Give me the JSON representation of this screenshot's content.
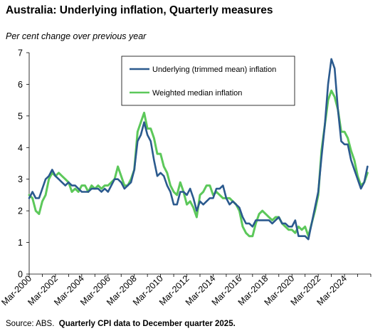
{
  "chart_data": {
    "type": "line",
    "title": "Australia: Underlying inflation, Quarterly measures",
    "subtitle": "Per cent change over previous year",
    "source_prefix": "Source: ABS.",
    "source_note": "Quarterly CPI data to December quarter 2025.",
    "xlabel": "",
    "ylabel": "",
    "ylim": [
      0,
      7
    ],
    "yticks": [
      0,
      1,
      2,
      3,
      4,
      5,
      6,
      7
    ],
    "x_start": "Mar-2000",
    "x_tick_labels": [
      "Mar-2000",
      "Mar-2002",
      "Mar-2004",
      "Mar-2006",
      "Mar-2008",
      "Mar-2010",
      "Mar-2012",
      "Mar-2014",
      "Mar-2016",
      "Mar-2018",
      "Mar-2020",
      "Mar-2022",
      "Mar-2024"
    ],
    "grid": false,
    "legend_position": "top-center",
    "series": [
      {
        "name": "Underlying (trimmed mean) inflation",
        "color": "#2b5a8e",
        "values": [
          2.4,
          2.6,
          2.4,
          2.4,
          2.7,
          3.0,
          3.1,
          3.3,
          3.1,
          3.0,
          2.9,
          2.8,
          2.9,
          2.8,
          2.8,
          2.7,
          2.6,
          2.6,
          2.6,
          2.7,
          2.7,
          2.7,
          2.6,
          2.7,
          2.6,
          2.8,
          3.0,
          3.0,
          2.9,
          2.7,
          2.8,
          2.9,
          3.3,
          4.2,
          4.4,
          4.8,
          4.4,
          4.2,
          3.6,
          3.1,
          3.2,
          3.1,
          2.8,
          2.6,
          2.2,
          2.2,
          2.6,
          2.6,
          2.5,
          2.7,
          2.4,
          2.0,
          2.3,
          2.2,
          2.3,
          2.4,
          2.4,
          2.7,
          2.7,
          2.8,
          2.4,
          2.2,
          2.3,
          2.2,
          2.1,
          1.8,
          1.6,
          1.6,
          1.5,
          1.7,
          1.7,
          1.7,
          1.7,
          1.7,
          1.6,
          1.7,
          1.8,
          1.6,
          1.6,
          1.5,
          1.5,
          1.7,
          1.2,
          1.2,
          1.2,
          1.1,
          1.6,
          2.1,
          2.6,
          3.7,
          4.7,
          6.0,
          6.8,
          6.5,
          5.2,
          4.2,
          4.1,
          4.1,
          3.6,
          3.3,
          3.0,
          2.7,
          2.9,
          3.4
        ]
      },
      {
        "name": "Weighted median inflation",
        "color": "#5cc85a",
        "values": [
          2.5,
          2.4,
          2.0,
          1.9,
          2.3,
          2.5,
          3.0,
          3.2,
          3.1,
          3.2,
          3.1,
          3.0,
          2.9,
          2.6,
          2.7,
          2.6,
          2.8,
          2.8,
          2.6,
          2.8,
          2.7,
          2.8,
          2.7,
          2.8,
          2.8,
          2.9,
          3.0,
          3.4,
          3.1,
          2.8,
          2.8,
          3.0,
          3.3,
          4.5,
          4.8,
          5.1,
          4.6,
          4.6,
          4.3,
          3.8,
          3.8,
          3.4,
          3.2,
          2.8,
          2.6,
          2.5,
          2.9,
          2.6,
          2.2,
          2.3,
          2.1,
          1.8,
          2.5,
          2.6,
          2.8,
          2.8,
          2.5,
          2.6,
          2.5,
          2.4,
          2.4,
          2.4,
          2.3,
          2.2,
          2.0,
          1.5,
          1.3,
          1.2,
          1.2,
          1.6,
          1.9,
          2.0,
          1.9,
          1.8,
          1.7,
          1.8,
          1.8,
          1.6,
          1.5,
          1.4,
          1.4,
          1.3,
          1.5,
          1.4,
          1.5,
          1.2,
          1.6,
          2.0,
          2.5,
          3.9,
          4.7,
          5.5,
          5.8,
          5.6,
          5.2,
          4.5,
          4.5,
          4.3,
          3.9,
          3.6,
          3.1,
          2.8,
          2.9,
          3.2
        ]
      }
    ]
  }
}
